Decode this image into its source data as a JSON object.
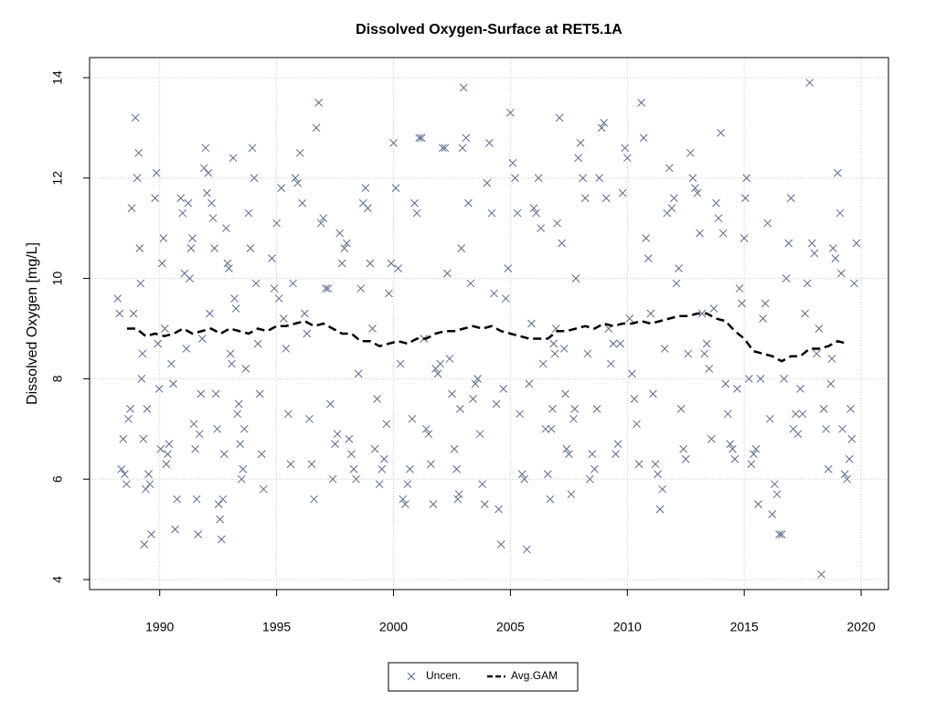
{
  "chart_data": {
    "type": "scatter",
    "title": "Dissolved Oxygen-Surface at RET5.1A",
    "y_label": "Dissolved Oxygen [mg/L]",
    "xlim": [
      1987.0,
      2021.17
    ],
    "ylim": [
      3.8,
      14.4
    ],
    "xticks": [
      1990,
      1995,
      2000,
      2005,
      2010,
      2015,
      2020
    ],
    "yticks": [
      4,
      6,
      8,
      10,
      12,
      14
    ],
    "grid": true,
    "legend": "bottom",
    "series": [
      {
        "name": "Uncen.",
        "color": "#5a6a8a",
        "marker": "x",
        "x": [
          1988.2,
          1988.28,
          1988.36,
          1988.44,
          1988.5,
          1988.58,
          1988.66,
          1988.74,
          1988.8,
          1988.88,
          1988.96,
          1989.04,
          1989.1,
          1989.14,
          1989.18,
          1989.22,
          1989.26,
          1989.3,
          1989.34,
          1989.4,
          1989.46,
          1989.52,
          1989.58,
          1989.64,
          1989.8,
          1989.86,
          1989.92,
          1989.98,
          1990.04,
          1990.1,
          1990.16,
          1990.22,
          1990.28,
          1990.34,
          1990.4,
          1990.5,
          1990.58,
          1990.66,
          1990.74,
          1990.9,
          1990.98,
          1991.06,
          1991.14,
          1991.22,
          1991.28,
          1991.34,
          1991.4,
          1991.46,
          1991.52,
          1991.58,
          1991.64,
          1991.7,
          1991.76,
          1991.82,
          1991.9,
          1991.96,
          1992.02,
          1992.08,
          1992.14,
          1992.22,
          1992.28,
          1992.34,
          1992.4,
          1992.46,
          1992.52,
          1992.58,
          1992.64,
          1992.7,
          1992.76,
          1992.84,
          1992.9,
          1992.96,
          1993.02,
          1993.08,
          1993.14,
          1993.2,
          1993.26,
          1993.32,
          1993.38,
          1993.44,
          1993.5,
          1993.56,
          1993.62,
          1993.68,
          1993.8,
          1993.88,
          1993.96,
          1994.04,
          1994.12,
          1994.2,
          1994.28,
          1994.36,
          1994.44,
          1994.8,
          1994.9,
          1995.0,
          1995.1,
          1995.2,
          1995.3,
          1995.4,
          1995.5,
          1995.6,
          1995.7,
          1995.8,
          1995.9,
          1996.0,
          1996.1,
          1996.2,
          1996.3,
          1996.4,
          1996.5,
          1996.6,
          1996.7,
          1996.8,
          1996.9,
          1997.0,
          1997.1,
          1997.2,
          1997.3,
          1997.4,
          1997.5,
          1997.6,
          1997.7,
          1997.8,
          1997.9,
          1998.0,
          1998.1,
          1998.2,
          1998.3,
          1998.4,
          1998.5,
          1998.6,
          1998.7,
          1998.8,
          1998.9,
          1999.0,
          1999.1,
          1999.2,
          1999.3,
          1999.4,
          1999.5,
          1999.6,
          1999.7,
          1999.8,
          1999.9,
          2000.0,
          2000.1,
          2000.2,
          2000.3,
          2000.4,
          2000.5,
          2000.6,
          2000.7,
          2000.8,
          2000.9,
          2001.0,
          2001.1,
          2001.2,
          2001.3,
          2001.4,
          2001.5,
          2001.6,
          2001.7,
          2001.8,
          2001.9,
          2002.0,
          2002.1,
          2002.2,
          2002.3,
          2002.4,
          2002.5,
          2002.6,
          2002.7,
          2002.75,
          2002.8,
          2002.85,
          2002.9,
          2002.95,
          2003.0,
          2003.1,
          2003.2,
          2003.3,
          2003.4,
          2003.5,
          2003.6,
          2003.7,
          2003.8,
          2003.9,
          2004.0,
          2004.1,
          2004.2,
          2004.3,
          2004.4,
          2004.5,
          2004.6,
          2004.7,
          2004.8,
          2004.9,
          2005.0,
          2005.1,
          2005.2,
          2005.3,
          2005.4,
          2005.5,
          2005.6,
          2005.7,
          2005.8,
          2005.9,
          2006.0,
          2006.1,
          2006.2,
          2006.3,
          2006.4,
          2006.5,
          2006.6,
          2006.7,
          2006.75,
          2006.8,
          2006.85,
          2006.9,
          2006.95,
          2007.0,
          2007.1,
          2007.2,
          2007.3,
          2007.35,
          2007.4,
          2007.5,
          2007.6,
          2007.7,
          2007.75,
          2007.8,
          2007.9,
          2008.0,
          2008.1,
          2008.2,
          2008.3,
          2008.4,
          2008.5,
          2008.6,
          2008.7,
          2008.8,
          2008.9,
          2009.0,
          2009.1,
          2009.2,
          2009.3,
          2009.4,
          2009.5,
          2009.6,
          2009.7,
          2009.8,
          2009.9,
          2010.0,
          2010.1,
          2010.2,
          2010.3,
          2010.4,
          2010.5,
          2010.6,
          2010.7,
          2010.8,
          2010.9,
          2011.0,
          2011.1,
          2011.2,
          2011.3,
          2011.4,
          2011.5,
          2011.6,
          2011.7,
          2011.8,
          2011.9,
          2012.0,
          2012.1,
          2012.2,
          2012.3,
          2012.4,
          2012.5,
          2012.6,
          2012.7,
          2012.8,
          2012.9,
          2013.0,
          2013.1,
          2013.2,
          2013.3,
          2013.4,
          2013.5,
          2013.6,
          2013.7,
          2013.8,
          2013.9,
          2014.0,
          2014.1,
          2014.2,
          2014.3,
          2014.4,
          2014.5,
          2014.6,
          2014.7,
          2014.8,
          2014.9,
          2015.0,
          2015.05,
          2015.1,
          2015.2,
          2015.3,
          2015.4,
          2015.5,
          2015.6,
          2015.7,
          2015.8,
          2015.9,
          2016.0,
          2016.1,
          2016.2,
          2016.3,
          2016.4,
          2016.5,
          2016.6,
          2016.7,
          2016.8,
          2016.9,
          2017.0,
          2017.1,
          2017.2,
          2017.3,
          2017.4,
          2017.5,
          2017.6,
          2017.7,
          2017.8,
          2017.9,
          2018.0,
          2018.1,
          2018.2,
          2018.3,
          2018.4,
          2018.5,
          2018.6,
          2018.7,
          2018.75,
          2018.8,
          2018.9,
          2019.0,
          2019.1,
          2019.15,
          2019.2,
          2019.3,
          2019.4,
          2019.5,
          2019.55,
          2019.6,
          2019.7,
          2019.8
        ],
        "values": [
          9.6,
          9.3,
          6.2,
          6.8,
          6.1,
          5.9,
          7.2,
          7.4,
          11.4,
          9.3,
          13.2,
          12.0,
          12.5,
          10.6,
          9.9,
          8.0,
          8.5,
          6.8,
          4.7,
          5.8,
          7.4,
          6.1,
          5.9,
          4.9,
          11.6,
          12.1,
          8.7,
          7.8,
          6.6,
          10.3,
          10.8,
          9.0,
          6.3,
          6.5,
          6.7,
          8.3,
          7.9,
          5.0,
          5.6,
          11.6,
          11.3,
          10.1,
          8.6,
          11.5,
          10.0,
          10.6,
          10.8,
          7.1,
          6.6,
          5.6,
          4.9,
          6.9,
          7.7,
          8.8,
          12.2,
          12.6,
          11.7,
          12.1,
          9.3,
          11.5,
          11.2,
          10.6,
          7.7,
          7.0,
          5.5,
          5.2,
          4.8,
          5.6,
          6.5,
          11.0,
          10.3,
          10.2,
          8.5,
          8.3,
          12.4,
          9.6,
          9.4,
          7.3,
          7.5,
          6.7,
          6.0,
          6.2,
          7.0,
          8.2,
          11.3,
          10.6,
          12.6,
          12.0,
          9.9,
          8.7,
          7.7,
          6.5,
          5.8,
          10.4,
          9.8,
          11.1,
          9.6,
          11.8,
          9.2,
          8.6,
          7.3,
          6.3,
          9.9,
          12.0,
          11.9,
          12.5,
          11.5,
          9.3,
          8.9,
          7.2,
          6.3,
          5.6,
          13.0,
          13.5,
          11.1,
          11.2,
          9.8,
          9.8,
          7.5,
          6.0,
          6.7,
          6.9,
          10.9,
          10.3,
          10.6,
          10.7,
          6.8,
          6.5,
          6.2,
          6.0,
          8.1,
          9.8,
          11.5,
          11.8,
          11.4,
          10.3,
          9.0,
          6.6,
          7.6,
          5.9,
          6.2,
          6.4,
          7.1,
          9.7,
          10.3,
          12.7,
          11.8,
          10.2,
          8.3,
          5.6,
          5.5,
          5.9,
          6.2,
          7.2,
          11.5,
          11.3,
          12.8,
          12.8,
          8.8,
          7.0,
          6.9,
          6.3,
          5.5,
          8.2,
          8.1,
          8.3,
          12.6,
          12.6,
          10.1,
          8.4,
          7.7,
          6.6,
          6.2,
          5.6,
          5.7,
          7.4,
          10.6,
          12.6,
          13.8,
          12.8,
          11.5,
          9.9,
          7.6,
          7.9,
          8.0,
          6.9,
          5.9,
          5.5,
          11.9,
          12.7,
          11.3,
          9.7,
          7.5,
          5.4,
          4.7,
          7.8,
          9.6,
          10.2,
          13.3,
          12.3,
          12.0,
          11.3,
          7.3,
          6.1,
          6.0,
          4.6,
          7.9,
          9.1,
          11.4,
          11.3,
          12.0,
          11.0,
          8.3,
          7.0,
          6.1,
          5.6,
          7.0,
          7.4,
          8.7,
          8.5,
          9.0,
          11.1,
          13.2,
          10.7,
          8.6,
          7.7,
          6.6,
          6.5,
          5.7,
          7.2,
          7.4,
          10.0,
          12.4,
          12.7,
          12.0,
          11.6,
          8.5,
          6.0,
          6.5,
          6.2,
          7.4,
          12.0,
          13.0,
          13.1,
          11.6,
          9.0,
          8.3,
          8.7,
          6.5,
          6.7,
          8.7,
          11.7,
          12.6,
          12.4,
          9.2,
          8.1,
          7.6,
          7.1,
          6.3,
          13.5,
          12.8,
          10.8,
          10.4,
          9.3,
          7.7,
          6.3,
          6.1,
          5.4,
          5.8,
          8.6,
          11.3,
          12.2,
          11.4,
          11.6,
          9.9,
          10.2,
          7.4,
          6.6,
          6.4,
          8.5,
          12.5,
          12.0,
          11.8,
          11.7,
          10.9,
          9.3,
          8.5,
          8.7,
          8.2,
          6.8,
          9.4,
          11.5,
          11.2,
          12.9,
          10.9,
          7.9,
          7.3,
          6.7,
          6.6,
          6.4,
          7.8,
          9.8,
          9.5,
          10.8,
          11.6,
          12.0,
          8.0,
          6.3,
          6.5,
          6.6,
          5.5,
          8.0,
          9.2,
          9.5,
          11.1,
          7.2,
          5.3,
          5.9,
          5.7,
          4.9,
          4.9,
          8.0,
          10.0,
          10.7,
          11.6,
          7.0,
          7.3,
          6.9,
          7.8,
          7.3,
          9.3,
          9.9,
          13.9,
          10.7,
          10.5,
          8.5,
          9.0,
          4.1,
          7.4,
          7.0,
          6.2,
          7.9,
          8.4,
          10.6,
          10.4,
          12.1,
          11.3,
          10.1,
          7.0,
          6.1,
          6.0,
          6.4,
          7.4,
          6.8,
          9.9,
          10.7
        ]
      },
      {
        "name": "Avg.GAM",
        "color": "#000000",
        "linestyle": "dashed",
        "x": [
          1988.6,
          1989.0,
          1989.4,
          1989.8,
          1990.2,
          1990.6,
          1991.0,
          1991.4,
          1991.8,
          1992.2,
          1992.6,
          1993.0,
          1993.4,
          1993.8,
          1994.2,
          1994.6,
          1995.0,
          1995.4,
          1995.8,
          1996.2,
          1996.6,
          1997.0,
          1997.4,
          1997.8,
          1998.2,
          1998.6,
          1999.0,
          1999.4,
          1999.8,
          2000.2,
          2000.6,
          2001.0,
          2001.4,
          2001.8,
          2002.2,
          2002.6,
          2003.0,
          2003.4,
          2003.8,
          2004.2,
          2004.6,
          2005.0,
          2005.4,
          2005.8,
          2006.2,
          2006.6,
          2007.0,
          2007.4,
          2007.8,
          2008.2,
          2008.6,
          2009.0,
          2009.4,
          2009.8,
          2010.2,
          2010.6,
          2011.0,
          2011.4,
          2011.8,
          2012.2,
          2012.6,
          2013.0,
          2013.4,
          2013.8,
          2014.2,
          2014.6,
          2015.0,
          2015.4,
          2015.8,
          2016.2,
          2016.6,
          2017.0,
          2017.4,
          2017.8,
          2018.2,
          2018.6,
          2019.0,
          2019.4
        ],
        "values": [
          9.0,
          9.0,
          8.85,
          8.9,
          8.85,
          8.9,
          9.0,
          8.9,
          8.95,
          9.0,
          8.9,
          9.0,
          8.95,
          8.9,
          9.0,
          8.95,
          9.05,
          9.05,
          9.1,
          9.15,
          9.05,
          9.1,
          9.0,
          8.9,
          8.9,
          8.75,
          8.75,
          8.65,
          8.7,
          8.75,
          8.7,
          8.8,
          8.8,
          8.9,
          8.95,
          8.95,
          9.0,
          9.05,
          9.0,
          9.05,
          8.95,
          8.9,
          8.85,
          8.8,
          8.8,
          8.8,
          8.95,
          8.95,
          9.0,
          9.05,
          9.0,
          9.1,
          9.05,
          9.1,
          9.1,
          9.15,
          9.1,
          9.15,
          9.2,
          9.25,
          9.25,
          9.3,
          9.3,
          9.2,
          9.15,
          8.95,
          8.8,
          8.55,
          8.5,
          8.45,
          8.35,
          8.45,
          8.45,
          8.6,
          8.6,
          8.65,
          8.75,
          8.7
        ]
      }
    ]
  }
}
